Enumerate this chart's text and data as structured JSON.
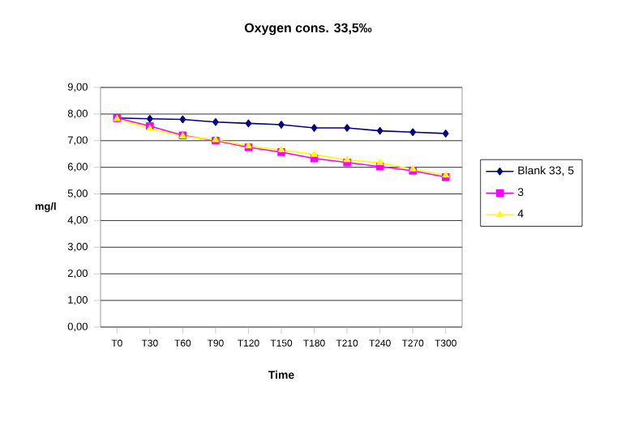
{
  "chart_data": {
    "type": "line",
    "title": "Oxygen cons. 33,5‰",
    "xlabel": "Time",
    "ylabel": "mg/l",
    "categories": [
      "T0",
      "T30",
      "T60",
      "T90",
      "T120",
      "T150",
      "T180",
      "T210",
      "T240",
      "T270",
      "T300"
    ],
    "series": [
      {
        "name": "Blank 33, 5",
        "color": "#000080",
        "marker": "diamond",
        "values": [
          7.85,
          7.82,
          7.8,
          7.7,
          7.65,
          7.6,
          7.48,
          7.48,
          7.37,
          7.32,
          7.27
        ]
      },
      {
        "name": "3",
        "color": "#ff00ff",
        "marker": "square",
        "values": [
          7.85,
          7.55,
          7.2,
          7.0,
          6.75,
          6.57,
          6.33,
          6.18,
          6.03,
          5.87,
          5.63
        ]
      },
      {
        "name": "4",
        "color": "#ffff00",
        "marker": "triangle",
        "values": [
          7.82,
          7.45,
          7.17,
          7.03,
          6.8,
          6.65,
          6.48,
          6.28,
          6.17,
          5.93,
          5.7
        ]
      }
    ],
    "ylim": [
      0,
      9
    ],
    "yticks": [
      {
        "value": 0,
        "label": "0,00"
      },
      {
        "value": 1,
        "label": "1,00"
      },
      {
        "value": 2,
        "label": "2,00"
      },
      {
        "value": 3,
        "label": "3,00"
      },
      {
        "value": 4,
        "label": "4,00"
      },
      {
        "value": 5,
        "label": "5,00"
      },
      {
        "value": 6,
        "label": "6,00"
      },
      {
        "value": 7,
        "label": "7,00"
      },
      {
        "value": 8,
        "label": "8,00"
      },
      {
        "value": 9,
        "label": "9,00"
      }
    ],
    "grid": "y",
    "legend": "right",
    "line_style": "solid"
  }
}
